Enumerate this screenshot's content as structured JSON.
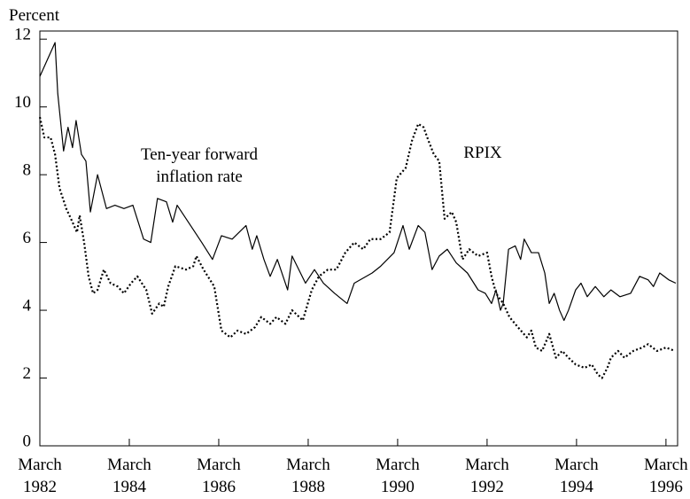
{
  "chart_data": {
    "type": "line",
    "ylabel": "Percent",
    "xlim": [
      1982.17,
      1996.43
    ],
    "ylim": [
      0,
      12.24
    ],
    "yticks": [
      0,
      2,
      4,
      6,
      8,
      10,
      12
    ],
    "xticks": [
      {
        "value": 1982.17,
        "label": "March 1982"
      },
      {
        "value": 1984.17,
        "label": "March 1984"
      },
      {
        "value": 1986.17,
        "label": "March 1986"
      },
      {
        "value": 1988.17,
        "label": "March 1988"
      },
      {
        "value": 1990.17,
        "label": "March 1990"
      },
      {
        "value": 1992.17,
        "label": "March 1992"
      },
      {
        "value": 1994.17,
        "label": "March 1994"
      },
      {
        "value": 1996.17,
        "label": "March 1996"
      }
    ],
    "grid": false,
    "series": [
      {
        "name": "Ten-year forward inflation rate",
        "color": "#000000",
        "style": "solid",
        "x": [
          1982.17,
          1982.51,
          1982.57,
          1982.7,
          1982.8,
          1982.9,
          1982.98,
          1983.1,
          1983.2,
          1983.3,
          1983.46,
          1983.66,
          1983.85,
          1984.05,
          1984.25,
          1984.49,
          1984.65,
          1984.8,
          1985.0,
          1985.14,
          1985.24,
          1985.54,
          1985.79,
          1986.03,
          1986.23,
          1986.47,
          1986.78,
          1986.92,
          1987.02,
          1987.18,
          1987.32,
          1987.48,
          1987.71,
          1987.81,
          1988.11,
          1988.31,
          1988.51,
          1988.76,
          1989.04,
          1989.2,
          1989.6,
          1989.79,
          1990.09,
          1990.29,
          1990.43,
          1990.63,
          1990.78,
          1990.94,
          1991.1,
          1991.28,
          1991.48,
          1991.73,
          1991.97,
          1992.13,
          1992.27,
          1992.37,
          1992.47,
          1992.53,
          1992.65,
          1992.8,
          1992.92,
          1993.0,
          1993.16,
          1993.32,
          1993.46,
          1993.56,
          1993.67,
          1993.79,
          1993.89,
          1993.99,
          1994.15,
          1994.27,
          1994.41,
          1994.59,
          1994.78,
          1994.94,
          1995.14,
          1995.38,
          1995.58,
          1995.77,
          1995.89,
          1996.03,
          1996.23,
          1996.39
        ],
        "values": [
          10.9,
          11.9,
          10.4,
          8.7,
          9.4,
          8.8,
          9.6,
          8.6,
          8.4,
          6.9,
          8.0,
          7.0,
          7.1,
          7.0,
          7.1,
          6.1,
          6.0,
          7.3,
          7.2,
          6.6,
          7.1,
          6.5,
          6.0,
          5.5,
          6.2,
          6.1,
          6.5,
          5.8,
          6.2,
          5.5,
          5.0,
          5.5,
          4.6,
          5.6,
          4.8,
          5.2,
          4.8,
          4.5,
          4.2,
          4.8,
          5.1,
          5.3,
          5.7,
          6.5,
          5.8,
          6.5,
          6.3,
          5.2,
          5.6,
          5.8,
          5.4,
          5.1,
          4.6,
          4.5,
          4.2,
          4.6,
          4.0,
          4.2,
          5.8,
          5.9,
          5.5,
          6.1,
          5.7,
          5.7,
          5.1,
          4.2,
          4.5,
          4.0,
          3.7,
          4.0,
          4.6,
          4.8,
          4.4,
          4.7,
          4.4,
          4.6,
          4.4,
          4.5,
          5.0,
          4.9,
          4.7,
          5.1,
          4.9,
          4.8
        ]
      },
      {
        "name": "RPIX",
        "color": "#000000",
        "style": "dotted",
        "x": [
          1982.17,
          1982.27,
          1982.41,
          1982.51,
          1982.61,
          1982.76,
          1982.9,
          1983.0,
          1983.06,
          1983.16,
          1983.26,
          1983.36,
          1983.46,
          1983.6,
          1983.75,
          1983.91,
          1984.05,
          1984.21,
          1984.35,
          1984.55,
          1984.68,
          1984.84,
          1984.94,
          1985.04,
          1985.2,
          1985.44,
          1985.6,
          1985.67,
          1985.83,
          1986.07,
          1986.23,
          1986.43,
          1986.59,
          1986.78,
          1986.98,
          1987.12,
          1987.32,
          1987.46,
          1987.66,
          1987.81,
          1988.05,
          1988.25,
          1988.41,
          1988.61,
          1988.8,
          1989.0,
          1989.2,
          1989.4,
          1989.56,
          1989.79,
          1989.99,
          1990.15,
          1990.35,
          1990.49,
          1990.63,
          1990.75,
          1990.86,
          1990.98,
          1991.1,
          1991.22,
          1991.38,
          1991.48,
          1991.62,
          1991.77,
          1991.97,
          1992.17,
          1992.27,
          1992.37,
          1992.53,
          1992.67,
          1992.86,
          1993.06,
          1993.16,
          1993.26,
          1993.4,
          1993.56,
          1993.71,
          1993.85,
          1993.99,
          1994.15,
          1994.35,
          1994.51,
          1994.65,
          1994.74,
          1994.86,
          1994.94,
          1995.1,
          1995.24,
          1995.44,
          1995.64,
          1995.77,
          1995.97,
          1996.17,
          1996.37
        ],
        "values": [
          9.7,
          9.1,
          9.1,
          8.6,
          7.6,
          7.0,
          6.6,
          6.3,
          6.8,
          6.0,
          5.0,
          4.5,
          4.6,
          5.2,
          4.8,
          4.7,
          4.5,
          4.8,
          5.0,
          4.6,
          3.9,
          4.2,
          4.1,
          4.7,
          5.3,
          5.2,
          5.3,
          5.6,
          5.2,
          4.7,
          3.4,
          3.2,
          3.4,
          3.3,
          3.5,
          3.8,
          3.6,
          3.8,
          3.6,
          4.0,
          3.7,
          4.6,
          5.0,
          5.2,
          5.2,
          5.7,
          6.0,
          5.8,
          6.1,
          6.1,
          6.3,
          7.9,
          8.2,
          9.0,
          9.5,
          9.4,
          9.0,
          8.6,
          8.4,
          6.7,
          6.9,
          6.6,
          5.5,
          5.8,
          5.6,
          5.7,
          5.0,
          4.5,
          4.2,
          3.8,
          3.5,
          3.2,
          3.4,
          2.9,
          2.8,
          3.3,
          2.6,
          2.8,
          2.6,
          2.4,
          2.3,
          2.4,
          2.1,
          2.0,
          2.3,
          2.6,
          2.8,
          2.6,
          2.8,
          2.9,
          3.0,
          2.8,
          2.9,
          2.8
        ]
      }
    ]
  }
}
